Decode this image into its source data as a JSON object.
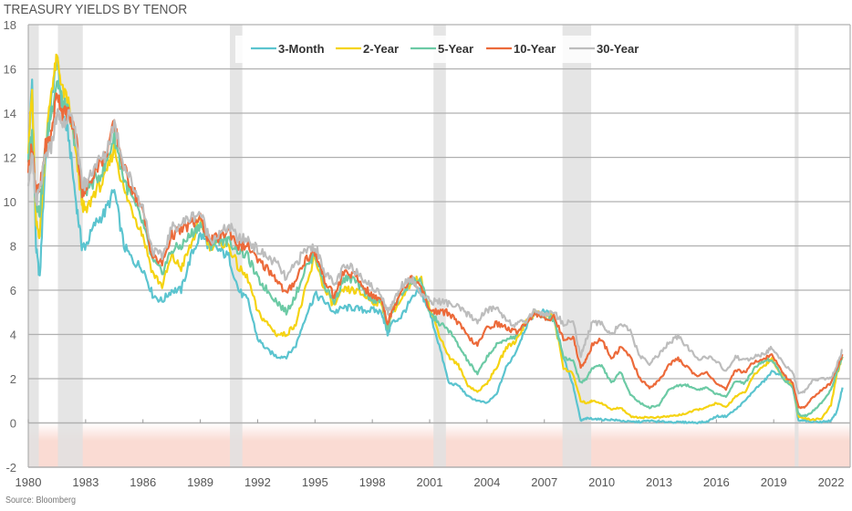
{
  "chart_data": {
    "type": "line",
    "title": "TREASURY YIELDS BY TENOR",
    "source": "Source: Bloomberg",
    "xlabel": "",
    "ylabel": "",
    "xlim": [
      1980,
      2023
    ],
    "ylim": [
      -2,
      18
    ],
    "yticks": [
      18,
      16,
      14,
      12,
      10,
      8,
      6,
      4,
      2,
      0,
      -2
    ],
    "ytick_labels": [
      "18",
      "16",
      "14",
      "12",
      "10",
      "8",
      "6",
      "4",
      "2",
      "0",
      "-2"
    ],
    "xticks": [
      1980,
      1983,
      1986,
      1989,
      1992,
      1995,
      1998,
      2001,
      2004,
      2007,
      2010,
      2013,
      2016,
      2019,
      2022
    ],
    "xtick_labels": [
      "1980",
      "1983",
      "1986",
      "1989",
      "1992",
      "1995",
      "1998",
      "2001",
      "2004",
      "2007",
      "2010",
      "2013",
      "2016",
      "2019",
      "2022"
    ],
    "grid": true,
    "legend_position": "top-center",
    "negative_zone": [
      -2,
      0
    ],
    "recessions": [
      [
        1980.0,
        1980.55
      ],
      [
        1981.55,
        1982.85
      ],
      [
        1990.55,
        1991.2
      ],
      [
        2001.2,
        2001.85
      ],
      [
        2007.95,
        2009.45
      ],
      [
        2020.1,
        2020.3
      ]
    ],
    "colors": {
      "3-Month": "#5bc4cf",
      "2-Year": "#f5d312",
      "5-Year": "#6ccaa5",
      "10-Year": "#ec6a3a",
      "30-Year": "#bdbdbd",
      "recession": "#e0e0e0",
      "negative_zone": "#fadbd3",
      "grid": "#b0b0b0"
    },
    "x": [
      1980.0,
      1980.2,
      1980.4,
      1980.6,
      1980.9,
      1981.2,
      1981.5,
      1981.8,
      1982.1,
      1982.5,
      1982.8,
      1983.0,
      1983.5,
      1984.0,
      1984.5,
      1985.0,
      1985.5,
      1986.0,
      1986.5,
      1987.0,
      1987.5,
      1988.0,
      1988.5,
      1989.0,
      1989.5,
      1990.0,
      1990.5,
      1991.0,
      1991.5,
      1992.0,
      1992.5,
      1993.0,
      1993.5,
      1994.0,
      1994.5,
      1995.0,
      1995.5,
      1996.0,
      1996.5,
      1997.0,
      1997.5,
      1998.0,
      1998.5,
      1998.8,
      1999.0,
      1999.5,
      2000.0,
      2000.5,
      2001.0,
      2001.5,
      2002.0,
      2002.5,
      2003.0,
      2003.5,
      2004.0,
      2004.5,
      2005.0,
      2005.5,
      2006.0,
      2006.5,
      2007.0,
      2007.5,
      2008.0,
      2008.5,
      2008.9,
      2009.2,
      2009.5,
      2010.0,
      2010.5,
      2011.0,
      2011.5,
      2012.0,
      2012.5,
      2013.0,
      2013.5,
      2014.0,
      2014.5,
      2015.0,
      2015.5,
      2016.0,
      2016.5,
      2017.0,
      2017.5,
      2018.0,
      2018.5,
      2018.9,
      2019.5,
      2020.0,
      2020.3,
      2020.6,
      2021.0,
      2021.5,
      2022.0,
      2022.3,
      2022.6
    ],
    "series": [
      {
        "name": "3-Month",
        "values": [
          12.0,
          15.5,
          8.0,
          6.5,
          12.0,
          14.5,
          16.5,
          14.0,
          13.0,
          10.0,
          8.0,
          8.0,
          9.0,
          9.5,
          10.5,
          8.0,
          7.3,
          7.0,
          5.8,
          5.5,
          6.0,
          6.0,
          7.5,
          8.5,
          8.0,
          7.8,
          7.5,
          6.0,
          5.5,
          3.8,
          3.3,
          3.0,
          3.0,
          3.5,
          4.8,
          5.8,
          5.5,
          5.0,
          5.2,
          5.2,
          5.1,
          5.1,
          5.0,
          4.0,
          4.5,
          4.8,
          5.5,
          6.0,
          5.0,
          3.5,
          1.8,
          1.7,
          1.2,
          1.0,
          0.9,
          1.3,
          2.5,
          3.2,
          4.3,
          5.0,
          5.0,
          4.8,
          3.0,
          1.7,
          0.1,
          0.2,
          0.2,
          0.15,
          0.15,
          0.1,
          0.05,
          0.05,
          0.1,
          0.05,
          0.05,
          0.03,
          0.03,
          0.02,
          0.05,
          0.3,
          0.3,
          0.6,
          1.0,
          1.5,
          1.9,
          2.3,
          2.2,
          1.6,
          0.1,
          0.1,
          0.05,
          0.05,
          0.1,
          0.5,
          1.6
        ]
      },
      {
        "name": "2-Year",
        "values": [
          12.5,
          15.0,
          9.0,
          8.5,
          12.5,
          15.0,
          16.5,
          15.0,
          14.5,
          12.0,
          10.0,
          9.5,
          10.5,
          11.0,
          12.5,
          10.5,
          9.5,
          8.5,
          6.8,
          6.2,
          7.5,
          7.0,
          8.0,
          9.2,
          8.0,
          8.2,
          8.0,
          7.0,
          6.5,
          5.0,
          4.5,
          4.0,
          4.0,
          4.5,
          6.0,
          7.5,
          6.0,
          5.3,
          6.0,
          6.0,
          5.8,
          5.5,
          5.4,
          4.3,
          5.0,
          5.5,
          6.2,
          6.6,
          5.2,
          4.0,
          3.0,
          2.6,
          1.7,
          1.4,
          1.8,
          2.5,
          3.4,
          3.7,
          4.5,
          5.0,
          4.9,
          4.8,
          2.5,
          2.2,
          1.0,
          0.9,
          1.0,
          0.9,
          0.6,
          0.7,
          0.3,
          0.25,
          0.25,
          0.25,
          0.3,
          0.35,
          0.45,
          0.6,
          0.7,
          0.9,
          0.7,
          1.2,
          1.4,
          2.2,
          2.6,
          2.9,
          2.0,
          1.7,
          0.3,
          0.2,
          0.15,
          0.2,
          0.8,
          2.2,
          3.0
        ]
      },
      {
        "name": "5-Year",
        "values": [
          12.0,
          13.0,
          10.0,
          9.5,
          12.5,
          14.0,
          15.5,
          14.5,
          14.0,
          12.5,
          10.5,
          10.5,
          11.0,
          11.5,
          13.0,
          11.0,
          10.0,
          9.0,
          7.3,
          6.8,
          7.8,
          8.0,
          8.5,
          9.0,
          8.0,
          8.3,
          8.2,
          7.8,
          7.5,
          6.5,
          6.0,
          5.5,
          5.0,
          5.8,
          7.0,
          7.7,
          6.2,
          5.5,
          6.5,
          6.5,
          6.0,
          5.6,
          5.5,
          4.2,
          5.0,
          5.8,
          6.4,
          6.5,
          5.0,
          4.5,
          4.2,
          3.5,
          2.8,
          2.2,
          3.0,
          3.5,
          3.8,
          3.9,
          4.5,
          5.0,
          4.8,
          4.7,
          3.0,
          2.8,
          1.8,
          2.0,
          2.5,
          2.6,
          1.8,
          2.3,
          1.3,
          0.9,
          0.7,
          0.8,
          1.5,
          1.7,
          1.7,
          1.5,
          1.6,
          1.3,
          1.2,
          1.9,
          1.8,
          2.5,
          2.8,
          2.9,
          2.0,
          1.6,
          0.4,
          0.3,
          0.5,
          0.9,
          1.5,
          2.3,
          3.0
        ]
      },
      {
        "name": "10-Year",
        "values": [
          11.5,
          12.5,
          10.5,
          10.5,
          12.5,
          13.0,
          15.0,
          14.0,
          14.0,
          13.0,
          10.5,
          10.5,
          11.5,
          12.0,
          13.5,
          11.5,
          10.5,
          9.5,
          7.5,
          7.2,
          8.5,
          8.7,
          9.0,
          9.2,
          8.2,
          8.4,
          8.7,
          8.0,
          8.0,
          7.3,
          7.0,
          6.5,
          5.8,
          6.5,
          7.4,
          7.7,
          6.5,
          5.7,
          6.8,
          6.7,
          6.2,
          5.7,
          5.6,
          4.5,
          5.0,
          6.0,
          6.5,
          6.2,
          5.1,
          5.0,
          5.0,
          4.5,
          3.9,
          3.5,
          4.3,
          4.5,
          4.3,
          4.1,
          4.5,
          5.0,
          4.7,
          4.8,
          3.8,
          3.9,
          2.5,
          2.9,
          3.5,
          3.8,
          2.9,
          3.4,
          3.0,
          2.0,
          1.6,
          1.9,
          2.6,
          2.9,
          2.5,
          2.1,
          2.3,
          1.8,
          1.5,
          2.4,
          2.3,
          2.8,
          2.9,
          3.1,
          2.2,
          1.8,
          0.7,
          0.7,
          1.1,
          1.5,
          1.8,
          2.5,
          3.1
        ]
      },
      {
        "name": "30-Year",
        "values": [
          11.0,
          12.0,
          10.0,
          10.5,
          12.0,
          12.5,
          14.0,
          13.5,
          14.0,
          13.0,
          10.8,
          10.8,
          11.7,
          12.0,
          13.6,
          11.7,
          10.7,
          9.7,
          7.8,
          7.5,
          8.8,
          9.0,
          9.3,
          9.5,
          8.3,
          8.5,
          8.9,
          8.3,
          8.3,
          7.8,
          7.5,
          7.2,
          6.5,
          7.2,
          7.8,
          8.0,
          6.9,
          6.2,
          7.0,
          7.0,
          6.6,
          6.1,
          5.8,
          5.0,
          5.3,
          6.2,
          6.6,
          5.9,
          5.5,
          5.5,
          5.4,
          5.2,
          4.9,
          4.6,
          5.1,
          5.2,
          4.7,
          4.4,
          4.6,
          5.1,
          4.9,
          5.0,
          4.5,
          4.6,
          3.0,
          3.8,
          4.5,
          4.5,
          4.0,
          4.5,
          4.1,
          3.0,
          2.7,
          3.1,
          3.6,
          3.9,
          3.4,
          2.9,
          3.0,
          2.8,
          2.3,
          3.0,
          2.8,
          3.0,
          3.1,
          3.4,
          2.7,
          2.3,
          1.3,
          1.4,
          1.9,
          2.0,
          2.0,
          2.6,
          3.3
        ]
      }
    ]
  }
}
